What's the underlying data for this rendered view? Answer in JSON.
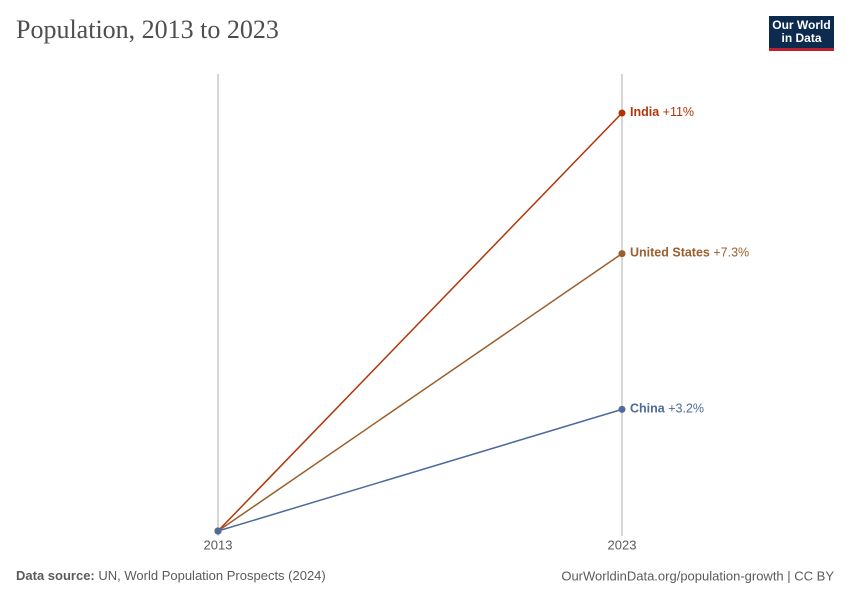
{
  "header": {
    "logo_line1": "Our World",
    "logo_line2": "in Data"
  },
  "chart_data": {
    "type": "line",
    "title": "Population, 2013 to 2023",
    "categories": [
      "2013",
      "2023"
    ],
    "series": [
      {
        "name": "India",
        "color": "#b13507",
        "values": [
          0,
          11
        ],
        "value_labels": [
          null,
          "+11%"
        ]
      },
      {
        "name": "United States",
        "color": "#9a5f2e",
        "values": [
          0,
          7.3
        ],
        "value_labels": [
          null,
          "+7.3%"
        ]
      },
      {
        "name": "China",
        "color": "#4c6a9c",
        "values": [
          0,
          3.2
        ],
        "value_labels": [
          null,
          "+3.2%"
        ]
      }
    ],
    "ylim": [
      0,
      11
    ]
  },
  "footer": {
    "source_label": "Data source:",
    "source": "UN, World Population Prospects (2024)",
    "url": "OurWorldinData.org/population-growth | CC BY"
  }
}
